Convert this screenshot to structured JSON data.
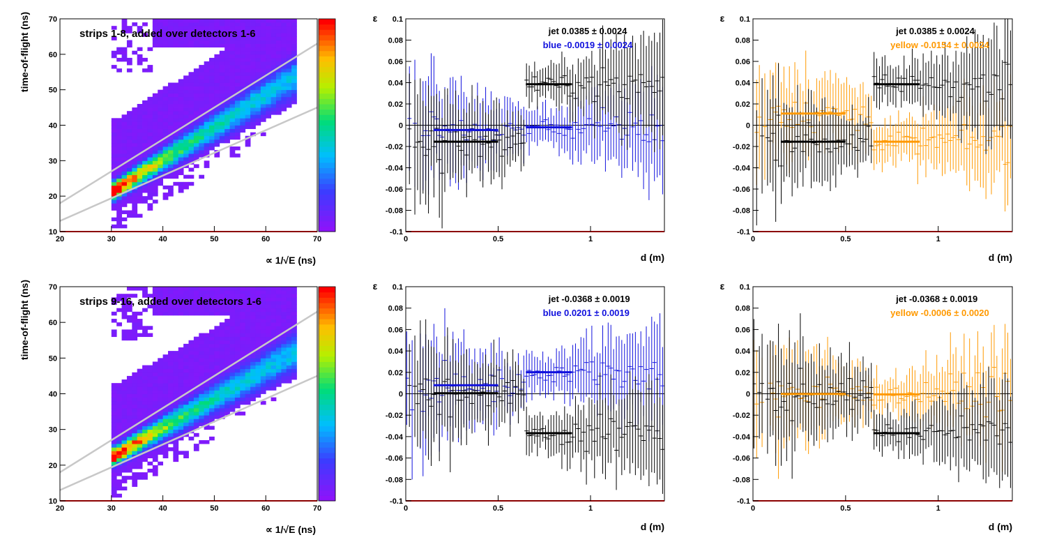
{
  "colors": {
    "jet": "#000000",
    "blue": "#1010dd",
    "yellow": "#ff9900",
    "band_line": "#c8c8c8",
    "frame_bottom": "#8b0000",
    "zero_line": "#000000"
  },
  "chart_data": [
    {
      "type": "heatmap",
      "title": "strips 1-8, added over detectors 1-6",
      "xlabel": "∝ 1/√E (ns)",
      "ylabel": "time-of-flight (ns)",
      "xlim": [
        20,
        70
      ],
      "ylim": [
        10,
        70
      ],
      "xticks": [
        "20",
        "30",
        "40",
        "50",
        "60",
        "70"
      ],
      "yticks": [
        "10",
        "20",
        "30",
        "40",
        "50",
        "60",
        "70"
      ],
      "colorscale": "rainbow",
      "cut_lines": [
        {
          "x": [
            20,
            70
          ],
          "y": [
            18,
            63
          ]
        },
        {
          "x": [
            20,
            70
          ],
          "y": [
            13,
            45
          ]
        }
      ],
      "ridge": {
        "x": [
          31,
          65
        ],
        "y": [
          22,
          53
        ]
      }
    },
    {
      "type": "scatter",
      "xlabel": "d (m)",
      "ylabel": "ε",
      "xlim": [
        0,
        1.4
      ],
      "ylim": [
        -0.1,
        0.1
      ],
      "xticks": [
        "0",
        "0.5",
        "1"
      ],
      "yticks": [
        "-0.1",
        "-0.08",
        "-0.06",
        "-0.04",
        "-0.02",
        "0",
        "0.02",
        "0.04",
        "0.06",
        "0.08",
        "0.1"
      ],
      "annotations": [
        {
          "label": "jet",
          "value": "0.0385",
          "error": "0.0024",
          "series": "jet"
        },
        {
          "label": "blue",
          "value": "-0.0019",
          "error": "0.0024",
          "series": "blue"
        }
      ],
      "series": [
        {
          "name": "jet",
          "fits": [
            {
              "x": [
                0.15,
                0.5
              ],
              "y": -0.0155
            },
            {
              "x": [
                0.65,
                0.9
              ],
              "y": 0.0385
            }
          ]
        },
        {
          "name": "blue",
          "fits": [
            {
              "x": [
                0.15,
                0.5
              ],
              "y": -0.0045
            },
            {
              "x": [
                0.65,
                0.9
              ],
              "y": -0.002
            }
          ]
        }
      ]
    },
    {
      "type": "scatter",
      "xlabel": "d (m)",
      "ylabel": "ε",
      "xlim": [
        0,
        1.4
      ],
      "ylim": [
        -0.1,
        0.1
      ],
      "xticks": [
        "0",
        "0.5",
        "1"
      ],
      "yticks": [
        "-0.1",
        "-0.08",
        "-0.06",
        "-0.04",
        "-0.02",
        "0",
        "0.02",
        "0.04",
        "0.06",
        "0.08",
        "0.1"
      ],
      "annotations": [
        {
          "label": "jet",
          "value": "0.0385",
          "error": "0.0024",
          "series": "jet"
        },
        {
          "label": "yellow",
          "value": "-0.0154",
          "error": "0.0024",
          "series": "yellow"
        }
      ],
      "series": [
        {
          "name": "jet",
          "fits": [
            {
              "x": [
                0.15,
                0.5
              ],
              "y": -0.0155
            },
            {
              "x": [
                0.65,
                0.9
              ],
              "y": 0.0385
            }
          ]
        },
        {
          "name": "yellow",
          "fits": [
            {
              "x": [
                0.15,
                0.5
              ],
              "y": 0.011
            },
            {
              "x": [
                0.65,
                0.9
              ],
              "y": -0.0155
            }
          ]
        }
      ]
    },
    {
      "type": "heatmap",
      "title": "strips 9-16, added over detectors 1-6",
      "xlabel": "∝ 1/√E (ns)",
      "ylabel": "time-of-flight (ns)",
      "xlim": [
        20,
        70
      ],
      "ylim": [
        10,
        70
      ],
      "xticks": [
        "20",
        "30",
        "40",
        "50",
        "60",
        "70"
      ],
      "yticks": [
        "10",
        "20",
        "30",
        "40",
        "50",
        "60",
        "70"
      ],
      "colorscale": "rainbow",
      "cut_lines": [
        {
          "x": [
            20,
            70
          ],
          "y": [
            18,
            63
          ]
        },
        {
          "x": [
            20,
            70
          ],
          "y": [
            13,
            45
          ]
        }
      ],
      "ridge": {
        "x": [
          31,
          65
        ],
        "y": [
          23,
          51
        ]
      }
    },
    {
      "type": "scatter",
      "xlabel": "d (m)",
      "ylabel": "ε",
      "xlim": [
        0,
        1.4
      ],
      "ylim": [
        -0.1,
        0.1
      ],
      "xticks": [
        "0",
        "0.5",
        "1"
      ],
      "yticks": [
        "-0.1",
        "-0.08",
        "-0.06",
        "-0.04",
        "-0.02",
        "0",
        "0.02",
        "0.04",
        "0.06",
        "0.08",
        "0.1"
      ],
      "annotations": [
        {
          "label": "jet",
          "value": "-0.0368",
          "error": "0.0019",
          "series": "jet"
        },
        {
          "label": "blue",
          "value": "0.0201",
          "error": "0.0019",
          "series": "blue"
        }
      ],
      "series": [
        {
          "name": "jet",
          "fits": [
            {
              "x": [
                0.15,
                0.5
              ],
              "y": 0.0005
            },
            {
              "x": [
                0.65,
                0.9
              ],
              "y": -0.0368
            }
          ]
        },
        {
          "name": "blue",
          "fits": [
            {
              "x": [
                0.15,
                0.5
              ],
              "y": 0.008
            },
            {
              "x": [
                0.65,
                0.9
              ],
              "y": 0.0201
            }
          ]
        }
      ]
    },
    {
      "type": "scatter",
      "xlabel": "d (m)",
      "ylabel": "ε",
      "xlim": [
        0,
        1.4
      ],
      "ylim": [
        -0.1,
        0.1
      ],
      "xticks": [
        "0",
        "0.5",
        "1"
      ],
      "yticks": [
        "-0.1",
        "-0.08",
        "-0.06",
        "-0.04",
        "-0.02",
        "0",
        "0.02",
        "0.04",
        "0.06",
        "0.08",
        "0.1"
      ],
      "annotations": [
        {
          "label": "jet",
          "value": "-0.0368",
          "error": "0.0019",
          "series": "jet"
        },
        {
          "label": "yellow",
          "value": "-0.0006",
          "error": "0.0020",
          "series": "yellow"
        }
      ],
      "series": [
        {
          "name": "jet",
          "fits": [
            {
              "x": [
                0.15,
                0.5
              ],
              "y": 0.0
            },
            {
              "x": [
                0.65,
                0.9
              ],
              "y": -0.0368
            }
          ]
        },
        {
          "name": "yellow",
          "fits": [
            {
              "x": [
                0.15,
                0.5
              ],
              "y": -0.0002
            },
            {
              "x": [
                0.65,
                0.9
              ],
              "y": -0.0006
            }
          ]
        }
      ]
    }
  ]
}
